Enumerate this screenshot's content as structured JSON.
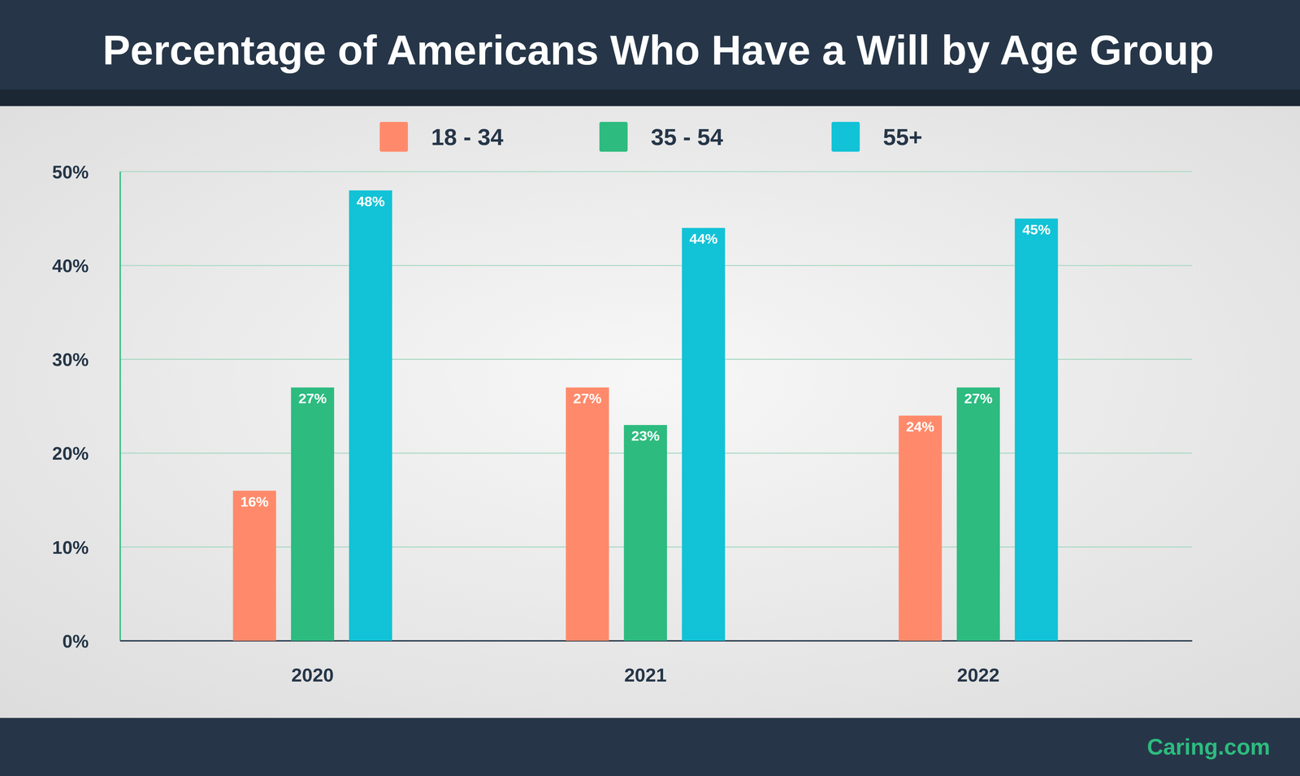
{
  "chart_data": {
    "type": "bar",
    "title": "Percentage of Americans Who Have a Will by Age Group",
    "categories": [
      "2020",
      "2021",
      "2022"
    ],
    "series": [
      {
        "name": "18 - 34",
        "color": "#ff8a6b",
        "values": [
          16,
          27,
          24
        ],
        "value_labels": [
          "16%",
          "27%",
          "24%"
        ]
      },
      {
        "name": "35 - 54",
        "color": "#2dbb7f",
        "values": [
          27,
          23,
          27
        ],
        "value_labels": [
          "27%",
          "23%",
          "27%"
        ]
      },
      {
        "name": "55+",
        "color": "#12c2d6",
        "values": [
          48,
          44,
          45
        ],
        "value_labels": [
          "48%",
          "44%",
          "45%"
        ]
      }
    ],
    "ylim": [
      0,
      50
    ],
    "yticks": [
      {
        "value": 0,
        "label": "0%"
      },
      {
        "value": 10,
        "label": "10%"
      },
      {
        "value": 20,
        "label": "20%"
      },
      {
        "value": 30,
        "label": "30%"
      },
      {
        "value": 40,
        "label": "40%"
      },
      {
        "value": 50,
        "label": "50%"
      }
    ],
    "grid": true,
    "data_labels": true,
    "legend": "top",
    "annotations": [
      "Caring.com"
    ]
  }
}
